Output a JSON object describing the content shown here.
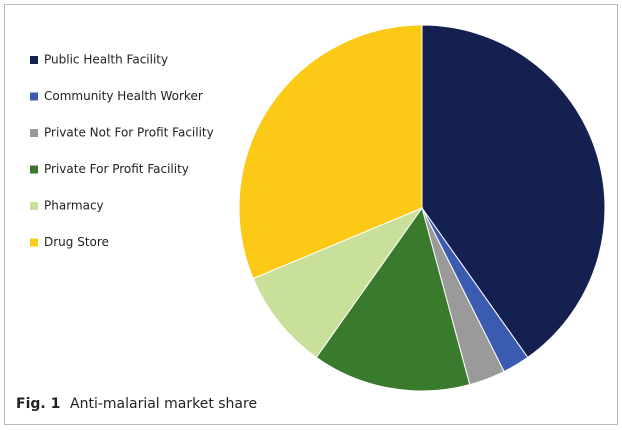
{
  "chart_data": {
    "type": "pie",
    "figure_label": "Fig. 1",
    "title": "Anti-malarial market share",
    "categories": [
      "Public Health Facility",
      "Community Health Worker",
      "Private Not For Profit Facility",
      "Private For Profit Facility",
      "Pharmacy",
      "Drug Store"
    ],
    "values": [
      40.2,
      2.4,
      3.2,
      14,
      8.9,
      31.3
    ],
    "colors": [
      "#14204f",
      "#3a5bb0",
      "#9a9a9a",
      "#3a7a2c",
      "#c9e09b",
      "#fcc917"
    ],
    "legend": "upper left"
  }
}
